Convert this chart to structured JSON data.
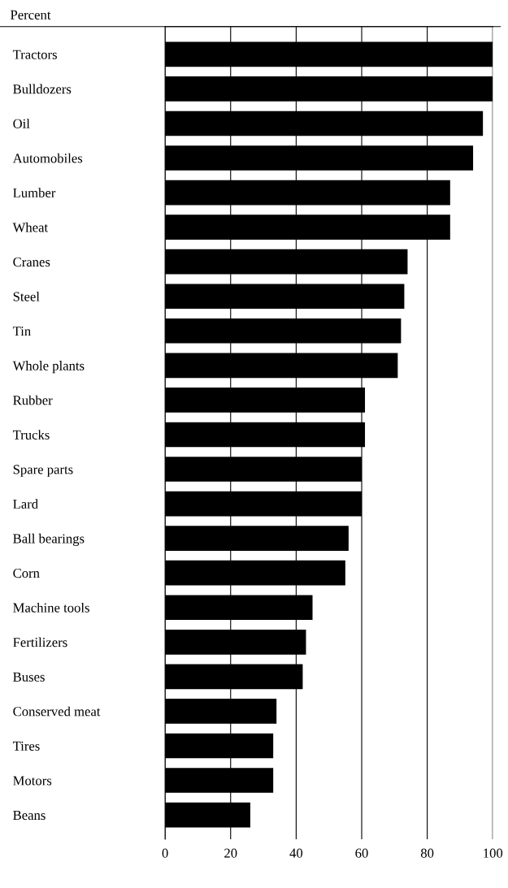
{
  "chart_data": {
    "type": "bar",
    "orientation": "horizontal",
    "annotations": [
      "Percent"
    ],
    "categories": [
      "Tractors",
      "Bulldozers",
      "Oil",
      "Automobiles",
      "Lumber",
      "Wheat",
      "Cranes",
      "Steel",
      "Tin",
      "Whole plants",
      "Rubber",
      "Trucks",
      "Spare parts",
      "Lard",
      "Ball bearings",
      "Corn",
      "Machine tools",
      "Fertilizers",
      "Buses",
      "Conserved meat",
      "Tires",
      "Motors",
      "Beans"
    ],
    "values": [
      100,
      100,
      97,
      94,
      87,
      87,
      74,
      73,
      72,
      71,
      61,
      61,
      60,
      60,
      56,
      55,
      45,
      43,
      42,
      34,
      33,
      33,
      26
    ],
    "color": "#000000",
    "xlim": [
      0,
      100
    ],
    "xticks": [
      0,
      20,
      40,
      60,
      80,
      100
    ],
    "grid": "x"
  }
}
